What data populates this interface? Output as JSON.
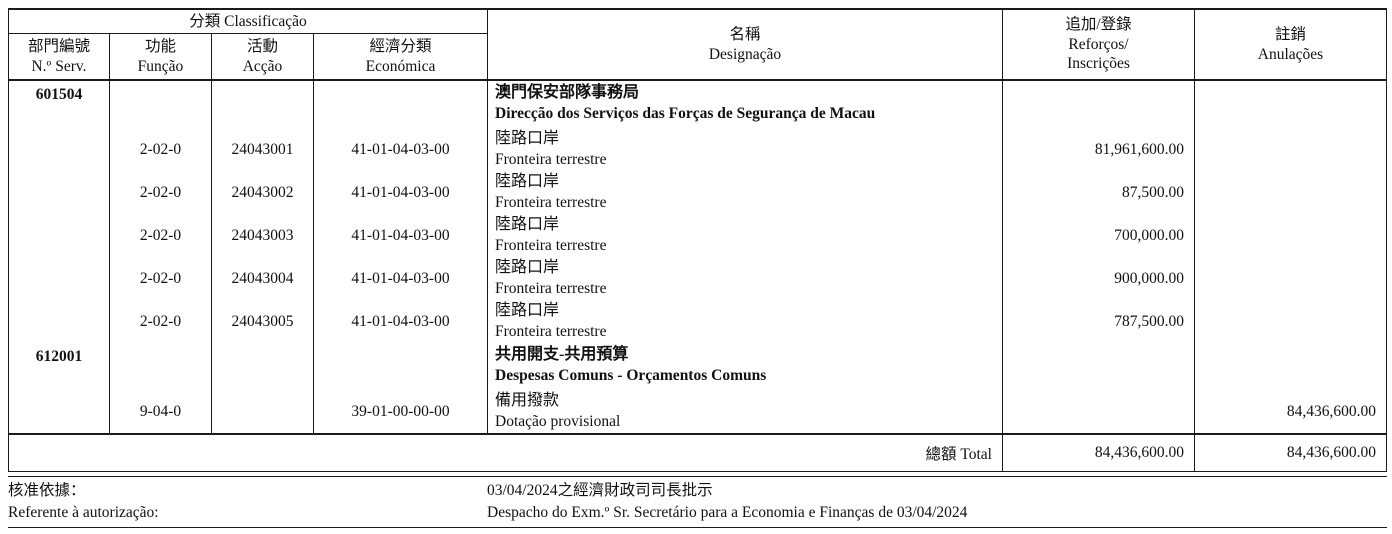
{
  "header": {
    "classification": "分類 Classificação",
    "columns": [
      {
        "zh": "部門編號",
        "pt": "N.º Serv."
      },
      {
        "zh": "功能",
        "pt": "Função"
      },
      {
        "zh": "活動",
        "pt": "Acção"
      },
      {
        "zh": "經濟分類",
        "pt": "Económica"
      }
    ],
    "designacao": {
      "zh": "名稱",
      "pt": "Designação"
    },
    "reforcos": {
      "zh": "追加/登錄",
      "pt_line1": "Reforços/",
      "pt_line2": "Inscrições"
    },
    "anulacoes": {
      "zh": "註銷",
      "pt": "Anulações"
    }
  },
  "body": {
    "rows": [
      {
        "section": true,
        "serv": "601504",
        "funcao": "",
        "accao": "",
        "economica": "",
        "desig_zh": "澳門保安部隊事務局",
        "desig_pt": "Direcção dos Serviços das Forças de Segurança de Macau",
        "reforcos": "",
        "anulacoes": ""
      },
      {
        "section": false,
        "serv": "",
        "funcao": "2-02-0",
        "accao": "24043001",
        "economica": "41-01-04-03-00",
        "desig_zh": "陸路口岸",
        "desig_pt": "Fronteira terrestre",
        "reforcos": "81,961,600.00",
        "anulacoes": ""
      },
      {
        "section": false,
        "serv": "",
        "funcao": "2-02-0",
        "accao": "24043002",
        "economica": "41-01-04-03-00",
        "desig_zh": "陸路口岸",
        "desig_pt": "Fronteira terrestre",
        "reforcos": "87,500.00",
        "anulacoes": ""
      },
      {
        "section": false,
        "serv": "",
        "funcao": "2-02-0",
        "accao": "24043003",
        "economica": "41-01-04-03-00",
        "desig_zh": "陸路口岸",
        "desig_pt": "Fronteira terrestre",
        "reforcos": "700,000.00",
        "anulacoes": ""
      },
      {
        "section": false,
        "serv": "",
        "funcao": "2-02-0",
        "accao": "24043004",
        "economica": "41-01-04-03-00",
        "desig_zh": "陸路口岸",
        "desig_pt": "Fronteira terrestre",
        "reforcos": "900,000.00",
        "anulacoes": ""
      },
      {
        "section": false,
        "serv": "",
        "funcao": "2-02-0",
        "accao": "24043005",
        "economica": "41-01-04-03-00",
        "desig_zh": "陸路口岸",
        "desig_pt": "Fronteira terrestre",
        "reforcos": "787,500.00",
        "anulacoes": ""
      },
      {
        "section": true,
        "serv": "612001",
        "funcao": "",
        "accao": "",
        "economica": "",
        "desig_zh": "共用開支-共用預算",
        "desig_pt": "Despesas Comuns - Orçamentos Comuns",
        "reforcos": "",
        "anulacoes": ""
      },
      {
        "section": false,
        "serv": "",
        "funcao": "9-04-0",
        "accao": "",
        "economica": "39-01-00-00-00",
        "desig_zh": "備用撥款",
        "desig_pt": "Dotação provisional",
        "reforcos": "",
        "anulacoes": "84,436,600.00"
      }
    ]
  },
  "total": {
    "label": "總額 Total",
    "reforcos": "84,436,600.00",
    "anulacoes": "84,436,600.00"
  },
  "footer": {
    "label_zh": "核准依據：",
    "label_pt": "Referente à autorização:",
    "auth_zh": "03/04/2024之經濟財政司司長批示",
    "auth_pt": "Despacho do Exm.º Sr. Secretário para a Economia e Finanças de 03/04/2024"
  }
}
